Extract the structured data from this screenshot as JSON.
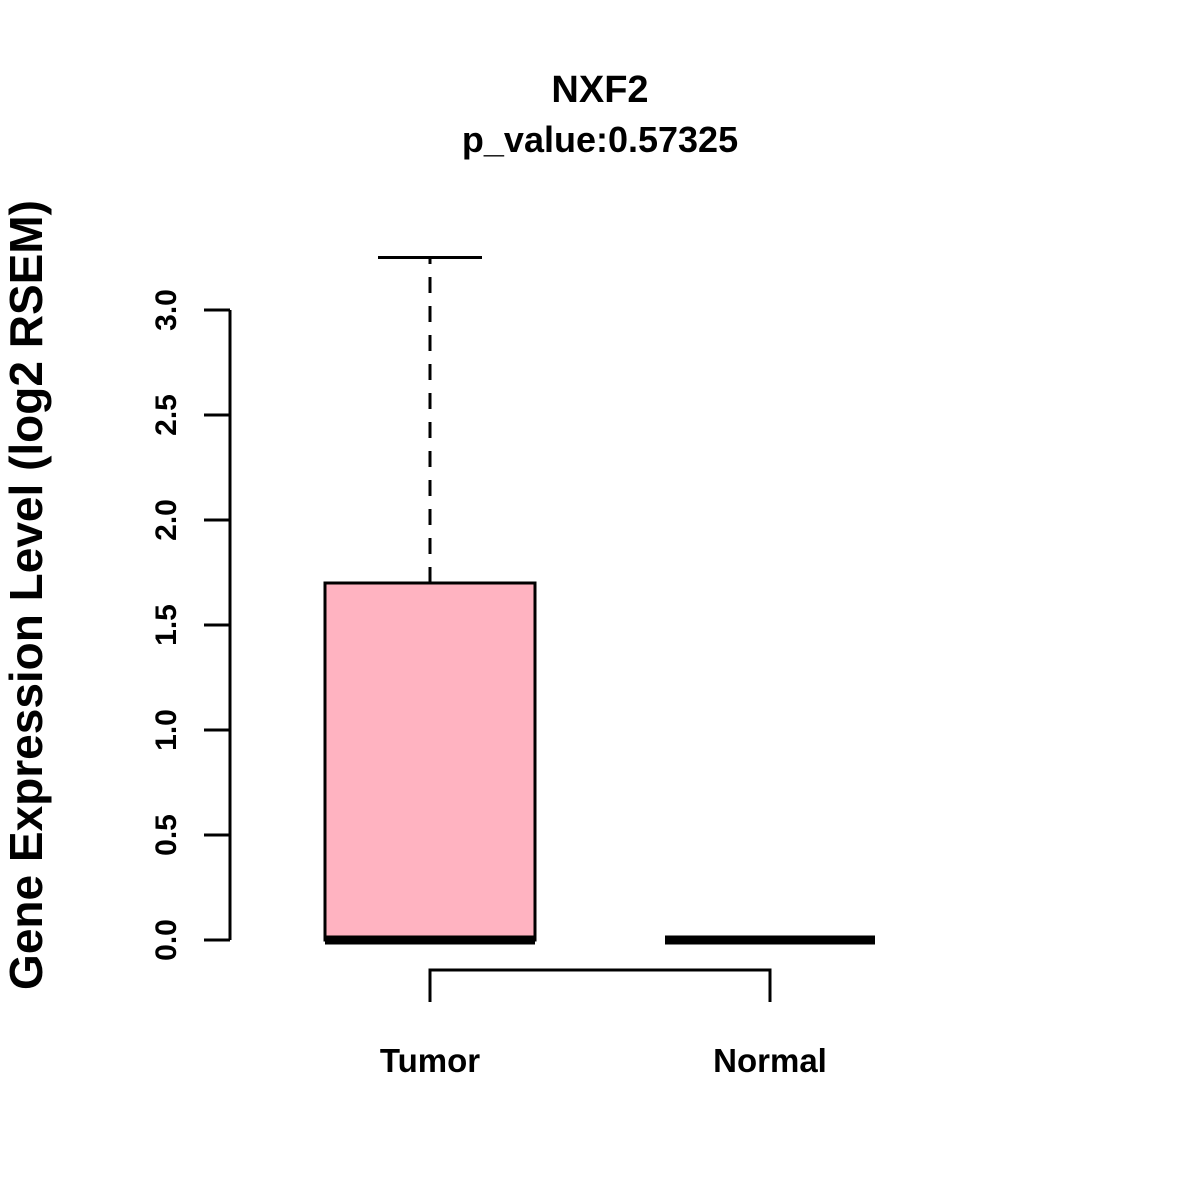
{
  "chart_data": {
    "type": "boxplot",
    "title": "NXF2",
    "subtitle": "p_value:0.57325",
    "ylabel": "Gene Expression Level (log2 RSEM)",
    "xlabel": "",
    "ylim": [
      0.0,
      3.0
    ],
    "yticks": [
      0.0,
      0.5,
      1.0,
      1.5,
      2.0,
      2.5,
      3.0
    ],
    "grid": false,
    "legend": "none",
    "box_fill": "#FFB3C1",
    "box_border": "#000000",
    "categories": [
      "Tumor",
      "Normal"
    ],
    "groups": [
      {
        "name": "Tumor",
        "lower_whisker": 0.0,
        "q1": 0.0,
        "median": 0.0,
        "q3": 1.7,
        "upper_whisker": 3.25,
        "fill": "#FFB3C1"
      },
      {
        "name": "Normal",
        "lower_whisker": 0.0,
        "q1": 0.0,
        "median": 0.0,
        "q3": 0.0,
        "upper_whisker": 0.0,
        "fill": "#FFB3C1"
      }
    ]
  }
}
